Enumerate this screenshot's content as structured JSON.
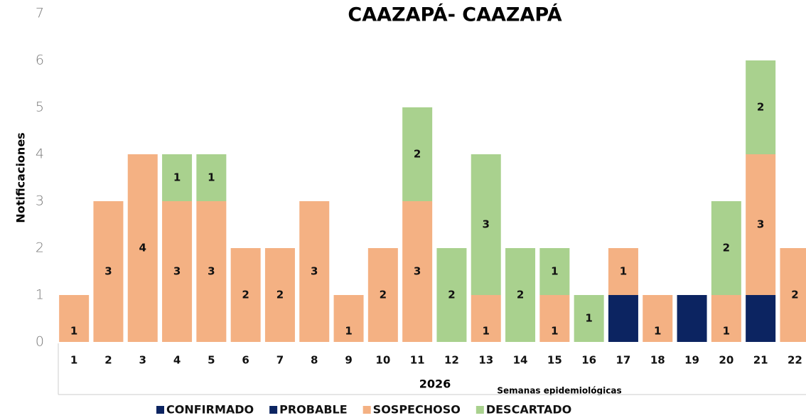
{
  "chart_data": {
    "type": "stacked_bar",
    "title": "CAAZAPÁ- CAAZAPÁ",
    "y_label": "Notificaciones",
    "x_label": "Semanas epidemiológicas",
    "x_group": "2026",
    "categories": [
      "1",
      "2",
      "3",
      "4",
      "5",
      "6",
      "7",
      "8",
      "9",
      "10",
      "11",
      "12",
      "13",
      "14",
      "15",
      "16",
      "17",
      "18",
      "19",
      "20",
      "21",
      "22"
    ],
    "series": [
      {
        "name": "CONFIRMADO",
        "color": "#0c2461",
        "show_labels": false,
        "values": [
          null,
          null,
          null,
          null,
          null,
          null,
          null,
          null,
          null,
          null,
          null,
          null,
          null,
          null,
          null,
          null,
          1,
          null,
          1,
          null,
          1,
          null
        ]
      },
      {
        "name": "PROBABLE",
        "color": "#0c2461",
        "show_labels": false,
        "values": [
          null,
          null,
          null,
          null,
          null,
          null,
          null,
          null,
          null,
          null,
          null,
          null,
          null,
          null,
          null,
          null,
          null,
          null,
          null,
          null,
          null,
          null
        ]
      },
      {
        "name": "SOSPECHOSO",
        "color": "#f4b183",
        "show_labels": true,
        "values": [
          1,
          3,
          4,
          3,
          3,
          2,
          2,
          3,
          1,
          2,
          3,
          null,
          1,
          null,
          1,
          null,
          1,
          1,
          null,
          1,
          3,
          2
        ]
      },
      {
        "name": "DESCARTADO",
        "color": "#a9d18e",
        "show_labels": true,
        "values": [
          null,
          null,
          null,
          1,
          1,
          null,
          null,
          null,
          null,
          null,
          2,
          2,
          3,
          2,
          1,
          1,
          null,
          null,
          null,
          2,
          2,
          null
        ]
      }
    ],
    "ylim": [
      0,
      7
    ],
    "yticks": [
      0,
      1,
      2,
      3,
      4,
      5,
      6,
      7
    ],
    "grid": false
  }
}
